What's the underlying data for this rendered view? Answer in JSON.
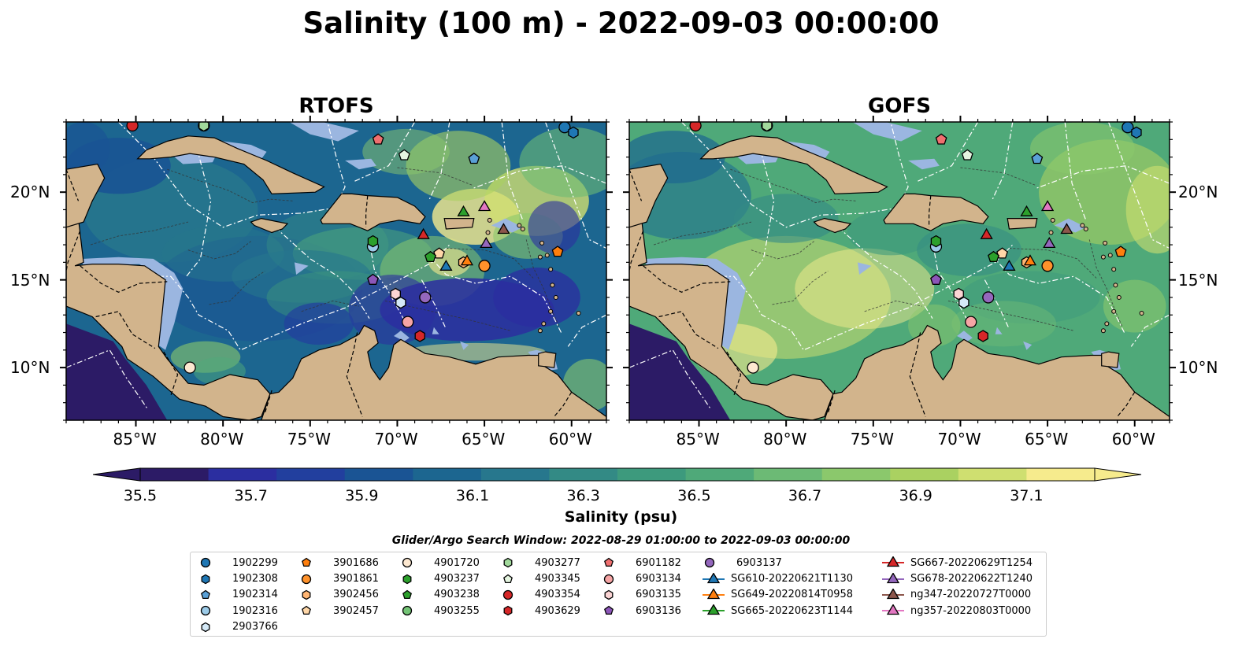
{
  "title": "Salinity (100 m) - 2022-09-03 00:00:00",
  "panels": [
    {
      "title": "RTOFS"
    },
    {
      "title": "GOFS"
    }
  ],
  "lon_ticks": [
    "85°W",
    "80°W",
    "75°W",
    "70°W",
    "65°W",
    "60°W"
  ],
  "lat_ticks": [
    "20°N",
    "15°N",
    "10°N"
  ],
  "colorbar": {
    "label": "Salinity (psu)",
    "ticks": [
      "35.5",
      "35.7",
      "35.9",
      "36.1",
      "36.3",
      "36.5",
      "36.7",
      "36.9",
      "37.1"
    ],
    "colors": [
      "#2c1b66",
      "#2b2ea0",
      "#223f9e",
      "#1a5494",
      "#1c6690",
      "#27778d",
      "#338a85",
      "#3d9a7d",
      "#4fa979",
      "#6cba75",
      "#8bc86c",
      "#aad161",
      "#cfdf70",
      "#f6eb8d"
    ]
  },
  "search_window": "Glider/Argo Search Window: 2022-08-29 01:00:00 to 2022-09-03 00:00:00",
  "chart_data": {
    "type": "heatmap",
    "title": "Salinity (100 m) - 2022-09-03 00:00:00",
    "variable": "Salinity (psu)",
    "color_range": [
      35.5,
      37.1
    ],
    "xlim": [
      -89,
      -58
    ],
    "ylim": [
      7,
      24
    ],
    "panels": [
      "RTOFS",
      "GOFS"
    ],
    "features": [
      {
        "name": "1902299",
        "marker": "circle",
        "color": "#1f77b4",
        "lon": -60.4,
        "lat": 23.7
      },
      {
        "name": "1902308",
        "marker": "hexagon",
        "color": "#1f77b4",
        "lon": -59.9,
        "lat": 23.4
      },
      {
        "name": "1902314",
        "marker": "pentagon",
        "color": "#5aa0d6",
        "lon": -65.6,
        "lat": 21.9
      },
      {
        "name": "1902316",
        "marker": "circle",
        "color": "#9ccbe8",
        "lon": -71.4,
        "lat": 16.9
      },
      {
        "name": "2903766",
        "marker": "hexagon",
        "color": "#d4e9f7",
        "lon": -69.8,
        "lat": 13.7
      },
      {
        "name": "3901686",
        "marker": "pentagon",
        "color": "#ff7f0e",
        "lon": -60.8,
        "lat": 16.6
      },
      {
        "name": "3901861",
        "marker": "circle",
        "color": "#ff922b",
        "lon": -65.0,
        "lat": 15.8
      },
      {
        "name": "3902456",
        "marker": "hexagon",
        "color": "#ffb573",
        "lon": -66.2,
        "lat": 16.0
      },
      {
        "name": "3902457",
        "marker": "pentagon",
        "color": "#ffd7a8",
        "lon": -67.6,
        "lat": 16.5
      },
      {
        "name": "4901720",
        "marker": "circle",
        "color": "#fde8d0",
        "lon": -81.9,
        "lat": 10.0
      },
      {
        "name": "4903237",
        "marker": "hexagon",
        "color": "#2ca02c",
        "lon": -71.4,
        "lat": 17.2
      },
      {
        "name": "4903238",
        "marker": "pentagon",
        "color": "#2ca02c",
        "lon": -68.1,
        "lat": 16.3
      },
      {
        "name": "4903255",
        "marker": "circle",
        "color": "#74c476",
        "lon": -81.1,
        "lat": 23.8
      },
      {
        "name": "4903277",
        "marker": "hexagon",
        "color": "#a1d99b",
        "lon": -81.1,
        "lat": 23.8
      },
      {
        "name": "4903345",
        "marker": "pentagon",
        "color": "#e5f5e0",
        "lon": -69.6,
        "lat": 22.1
      },
      {
        "name": "4903354",
        "marker": "circle",
        "color": "#d62728",
        "lon": -85.2,
        "lat": 23.8
      },
      {
        "name": "4903629",
        "marker": "hexagon",
        "color": "#d62728",
        "lon": -68.7,
        "lat": 11.8
      },
      {
        "name": "6901182",
        "marker": "pentagon",
        "color": "#ef6f6f",
        "lon": -71.1,
        "lat": 23.0
      },
      {
        "name": "6903134",
        "marker": "circle",
        "color": "#f6a5a5",
        "lon": -69.4,
        "lat": 12.6
      },
      {
        "name": "6903135",
        "marker": "hexagon",
        "color": "#fbd4d4",
        "lon": -70.1,
        "lat": 14.2
      },
      {
        "name": "6903136",
        "marker": "pentagon",
        "color": "#8c56b8",
        "lon": -71.4,
        "lat": 15.0
      },
      {
        "name": "6903137",
        "marker": "circle",
        "color": "#9467bd",
        "lon": -68.4,
        "lat": 14.0
      },
      {
        "name": "SG610-20220621T1130",
        "marker": "triangle",
        "color": "#1f77b4",
        "lon": -67.2,
        "lat": 15.8
      },
      {
        "name": "SG649-20220814T0958",
        "marker": "triangle",
        "color": "#ff7f0e",
        "lon": -66.0,
        "lat": 16.1
      },
      {
        "name": "SG665-20220623T1144",
        "marker": "triangle",
        "color": "#2ca02c",
        "lon": -66.2,
        "lat": 18.9
      },
      {
        "name": "SG667-20220629T1254",
        "marker": "triangle",
        "color": "#d62728",
        "lon": -68.5,
        "lat": 17.6
      },
      {
        "name": "SG678-20220622T1240",
        "marker": "triangle",
        "color": "#9467bd",
        "lon": -64.9,
        "lat": 17.1
      },
      {
        "name": "ng347-20220727T0000",
        "marker": "triangle",
        "color": "#8c564b",
        "lon": -63.9,
        "lat": 17.9
      },
      {
        "name": "ng357-20220803T0000",
        "marker": "triangle",
        "color": "#e377c2",
        "lon": -65.0,
        "lat": 19.2
      }
    ]
  },
  "legend": {
    "columns": [
      [
        {
          "label": "1902299",
          "marker": "circle",
          "color": "#1f77b4"
        },
        {
          "label": "1902308",
          "marker": "hexagon",
          "color": "#1f77b4"
        },
        {
          "label": "1902314",
          "marker": "pentagon",
          "color": "#5aa0d6"
        },
        {
          "label": "1902316",
          "marker": "circle",
          "color": "#9ccbe8"
        },
        {
          "label": "2903766",
          "marker": "hexagon",
          "color": "#d4e9f7"
        }
      ],
      [
        {
          "label": "3901686",
          "marker": "pentagon",
          "color": "#ff7f0e"
        },
        {
          "label": "3901861",
          "marker": "circle",
          "color": "#ff922b"
        },
        {
          "label": "3902456",
          "marker": "hexagon",
          "color": "#ffb573"
        },
        {
          "label": "3902457",
          "marker": "pentagon",
          "color": "#ffd7a8"
        }
      ],
      [
        {
          "label": "4901720",
          "marker": "circle",
          "color": "#fde8d0"
        },
        {
          "label": "4903237",
          "marker": "hexagon",
          "color": "#2ca02c"
        },
        {
          "label": "4903238",
          "marker": "pentagon",
          "color": "#2ca02c"
        },
        {
          "label": "4903255",
          "marker": "circle",
          "color": "#74c476"
        }
      ],
      [
        {
          "label": "4903277",
          "marker": "hexagon",
          "color": "#a1d99b"
        },
        {
          "label": "4903345",
          "marker": "pentagon",
          "color": "#e5f5e0"
        },
        {
          "label": "4903354",
          "marker": "circle",
          "color": "#d62728"
        },
        {
          "label": "4903629",
          "marker": "hexagon",
          "color": "#d62728"
        }
      ],
      [
        {
          "label": "6901182",
          "marker": "pentagon",
          "color": "#ef6f6f"
        },
        {
          "label": "6903134",
          "marker": "circle",
          "color": "#f6a5a5"
        },
        {
          "label": "6903135",
          "marker": "hexagon",
          "color": "#fbd4d4"
        },
        {
          "label": "6903136",
          "marker": "pentagon",
          "color": "#8c56b8"
        }
      ],
      [
        {
          "label": "6903137",
          "marker": "circle",
          "color": "#9467bd"
        },
        {
          "label": "SG610-20220621T1130",
          "marker": "triangle-line",
          "color": "#1f77b4"
        },
        {
          "label": "SG649-20220814T0958",
          "marker": "triangle-line",
          "color": "#ff7f0e"
        },
        {
          "label": "SG665-20220623T1144",
          "marker": "triangle-line",
          "color": "#2ca02c"
        }
      ],
      [
        {
          "label": "SG667-20220629T1254",
          "marker": "triangle-line",
          "color": "#d62728"
        },
        {
          "label": "SG678-20220622T1240",
          "marker": "triangle-line",
          "color": "#9467bd"
        },
        {
          "label": "ng347-20220727T0000",
          "marker": "triangle-line",
          "color": "#8c564b"
        },
        {
          "label": "ng357-20220803T0000",
          "marker": "triangle-line",
          "color": "#e377c2"
        }
      ]
    ]
  }
}
